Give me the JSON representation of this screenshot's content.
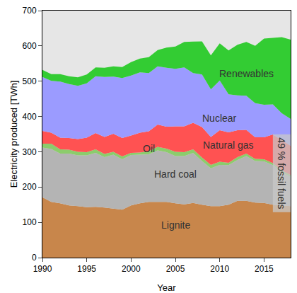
{
  "chart_data": {
    "type": "area",
    "stacked": true,
    "grid": false,
    "x_label": "Year",
    "y_label": "Electricity produced [TWh]",
    "x": [
      1990,
      1991,
      1992,
      1993,
      1994,
      1995,
      1996,
      1997,
      1998,
      1999,
      2000,
      2001,
      2002,
      2003,
      2004,
      2005,
      2006,
      2007,
      2008,
      2009,
      2010,
      2011,
      2012,
      2013,
      2014,
      2015,
      2016,
      2017,
      2018
    ],
    "xlim": [
      1990,
      2018
    ],
    "xticks": [
      1990,
      1995,
      2000,
      2005,
      2010,
      2015
    ],
    "ylim": [
      0,
      700
    ],
    "yticks": [
      0,
      100,
      200,
      300,
      400,
      500,
      600,
      700
    ],
    "series": [
      {
        "name": "Lignite",
        "color": "#c8864b",
        "values": [
          171,
          158,
          154,
          148,
          146,
          143,
          144,
          142,
          139,
          136,
          148,
          154,
          158,
          158,
          158,
          154,
          151,
          155,
          150,
          146,
          146,
          150,
          161,
          161,
          156,
          155,
          150,
          148,
          146
        ]
      },
      {
        "name": "Hard coal",
        "color": "#b4b4b4",
        "values": [
          141,
          150,
          141,
          147,
          144,
          147,
          153,
          143,
          153,
          143,
          143,
          138,
          135,
          146,
          141,
          134,
          137,
          142,
          124,
          107,
          117,
          112,
          116,
          127,
          118,
          118,
          112,
          93,
          83
        ]
      },
      {
        "name": "Oil",
        "color": "#8ccc6c",
        "values": [
          11,
          15,
          12,
          11,
          10,
          9,
          10,
          9,
          8,
          8,
          6,
          6,
          9,
          10,
          10,
          12,
          11,
          10,
          10,
          10,
          9,
          7,
          8,
          7,
          6,
          6,
          6,
          6,
          5
        ]
      },
      {
        "name": "Natural gas",
        "color": "#ff5252",
        "values": [
          36,
          31,
          33,
          33,
          36,
          41,
          46,
          48,
          51,
          52,
          49,
          56,
          56,
          63,
          62,
          72,
          73,
          75,
          86,
          79,
          89,
          86,
          76,
          67,
          61,
          62,
          81,
          86,
          83
        ]
      },
      {
        "name": "Nuclear",
        "color": "#9b9bff",
        "values": [
          153,
          147,
          159,
          153,
          151,
          154,
          161,
          170,
          162,
          170,
          170,
          171,
          165,
          165,
          167,
          163,
          167,
          141,
          149,
          135,
          141,
          108,
          99,
          97,
          97,
          92,
          85,
          76,
          76
        ]
      },
      {
        "name": "Renewables",
        "color": "#33cc33",
        "values": [
          20,
          19,
          21,
          22,
          24,
          25,
          25,
          26,
          29,
          31,
          38,
          39,
          45,
          46,
          57,
          63,
          72,
          89,
          94,
          96,
          105,
          124,
          143,
          152,
          162,
          188,
          189,
          216,
          225
        ]
      }
    ],
    "annotations": [
      {
        "text": "49 % fossil fuels"
      }
    ]
  }
}
